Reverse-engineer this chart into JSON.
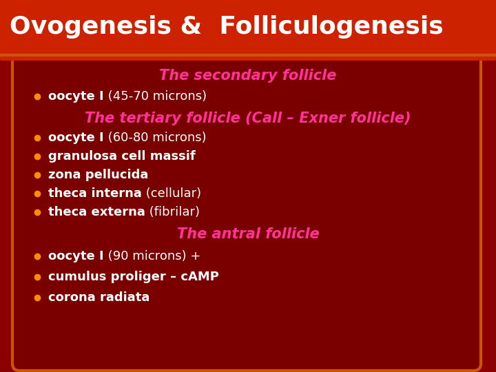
{
  "title": "Ovogenesis &  Folliculogenesis",
  "title_color": "#FFFFFF",
  "title_bg_color": "#CC2200",
  "bg_color": "#8B0000",
  "content_bg_color": "#8B0000",
  "border_color": "#CC5500",
  "secondary_heading": "The secondary follicle",
  "secondary_heading_color": "#FF3399",
  "secondary_bullets": [
    {
      "bold": "oocyte I",
      "normal": " (45-70 microns)"
    }
  ],
  "tertiary_heading": "The tertiary follicle (Call – Exner follicle)",
  "tertiary_heading_color": "#FF3399",
  "tertiary_bullets": [
    {
      "bold": "oocyte I",
      "normal": " (60-80 microns)"
    },
    {
      "bold": "granulosa cell massif",
      "normal": ""
    },
    {
      "bold": "zona pellucida",
      "normal": ""
    },
    {
      "bold": "theca interna",
      "normal": " (cellular)"
    },
    {
      "bold": "theca externa",
      "normal": " (fibrilar)"
    }
  ],
  "antral_heading": "The antral follicle",
  "antral_heading_color": "#FF3399",
  "antral_bullets": [
    {
      "bold": "oocyte I",
      "normal": " (90 microns) +"
    },
    {
      "bold": "cumulus proliger – cAMP",
      "normal": ""
    },
    {
      "bold": "corona radiata",
      "normal": ""
    }
  ],
  "bullet_color": "#FF8C00",
  "bullet_text_color": "#FFFFFF",
  "figsize": [
    7.2,
    5.4
  ],
  "dpi": 100
}
